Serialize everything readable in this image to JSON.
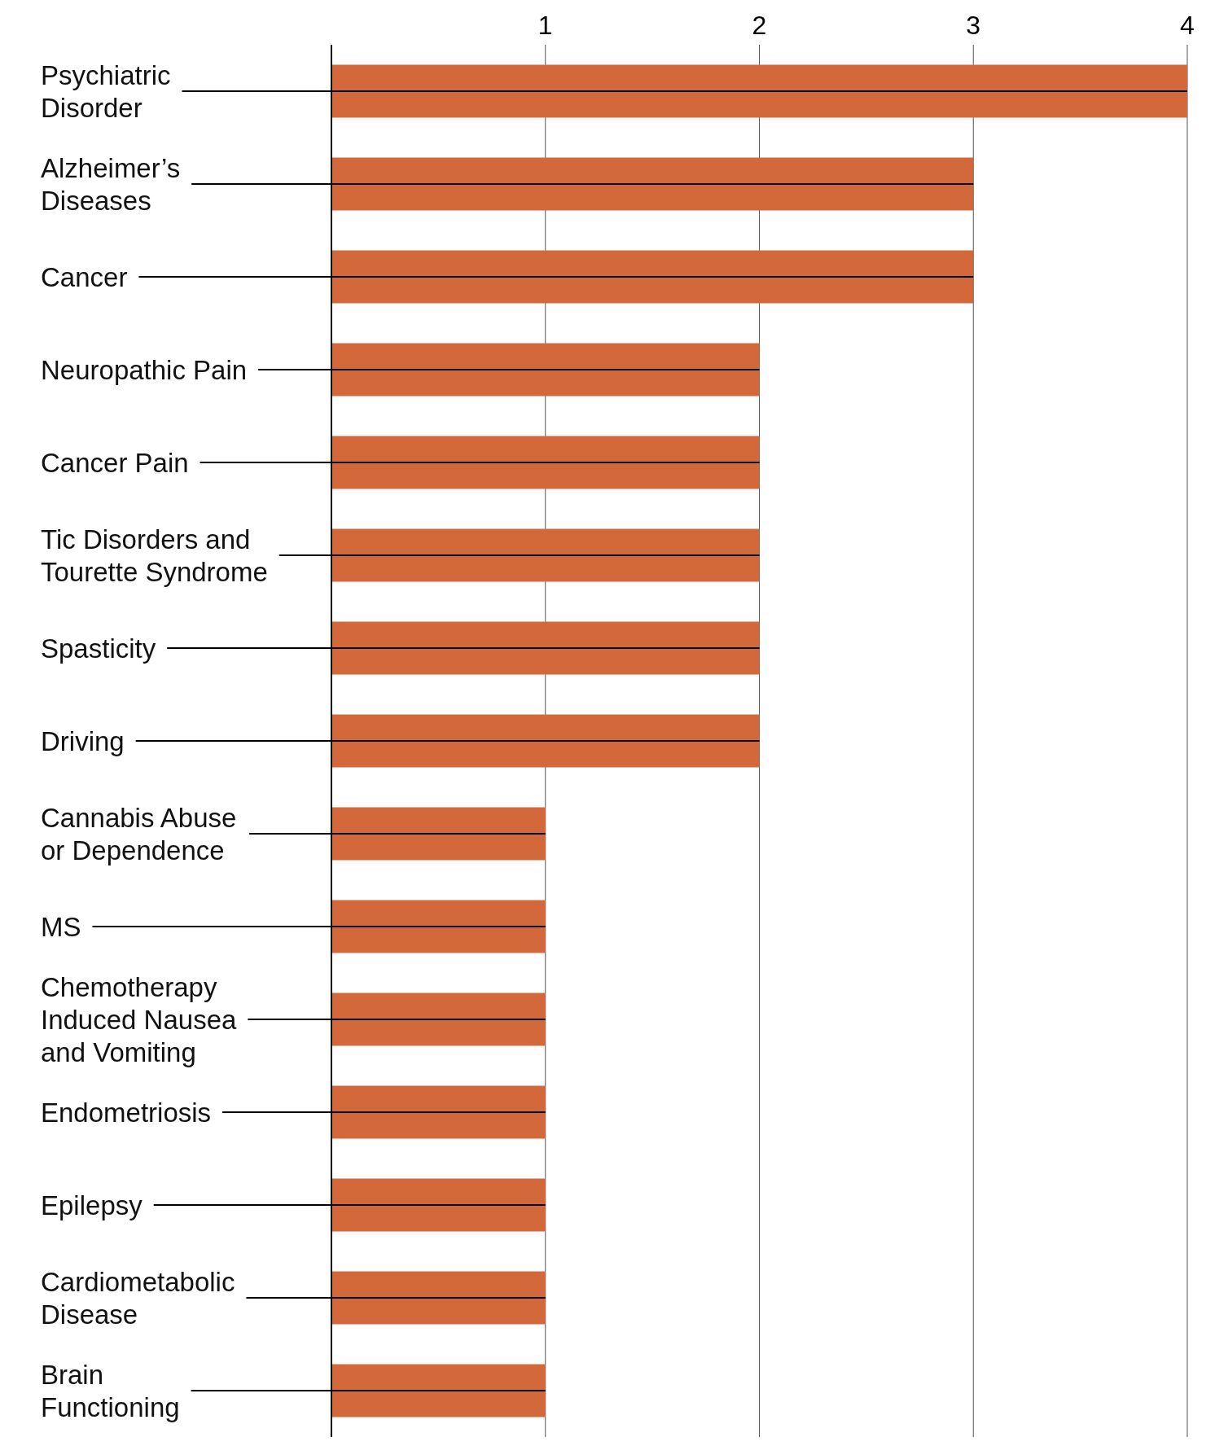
{
  "chart_data": {
    "type": "bar",
    "orientation": "horizontal",
    "categories": [
      "Psychiatric\nDisorder",
      "Alzheimer’s\nDiseases",
      "Cancer",
      "Neuropathic Pain",
      "Cancer Pain",
      "Tic Disorders and\nTourette Syndrome",
      "Spasticity",
      "Driving",
      "Cannabis Abuse\nor Dependence",
      "MS",
      "Chemotherapy\nInduced Nausea\nand Vomiting",
      "Endometriosis",
      "Epilepsy",
      "Cardiometabolic\nDisease",
      "Brain\nFunctioning"
    ],
    "values": [
      4,
      3,
      3,
      2,
      2,
      2,
      2,
      2,
      1,
      1,
      1,
      1,
      1,
      1,
      1
    ],
    "color": "#d3693a",
    "xlim": [
      0,
      4
    ],
    "xticks": [
      1,
      2,
      3,
      4
    ],
    "grid": "x"
  }
}
